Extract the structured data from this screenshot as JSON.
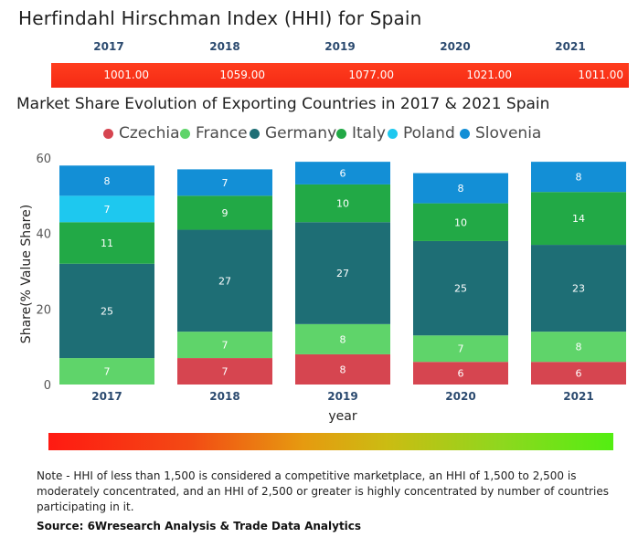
{
  "hhi": {
    "title": "Herfindahl Hirschman Index (HHI) for Spain",
    "years": [
      "2017",
      "2018",
      "2019",
      "2020",
      "2021"
    ],
    "values": [
      "1001.00",
      "1059.00",
      "1077.00",
      "1021.00",
      "1011.00"
    ],
    "bar_color": "#f52a14"
  },
  "chart_data": {
    "type": "bar",
    "stacked": true,
    "title": "Market Share Evolution of Exporting Countries in 2017 & 2021 Spain",
    "xlabel": "year",
    "ylabel": "Share(% Value Share)",
    "categories": [
      "2017",
      "2018",
      "2019",
      "2020",
      "2021"
    ],
    "ylim": [
      0,
      60
    ],
    "yticks": [
      "0",
      "20",
      "40",
      "60"
    ],
    "grid": false,
    "legend_position": "top",
    "series": [
      {
        "name": "Czechia",
        "color": "#d64550",
        "values": [
          0,
          7,
          8,
          6,
          6
        ],
        "labels": [
          "",
          "7",
          "8",
          "6",
          "6"
        ]
      },
      {
        "name": "France",
        "color": "#5fd46a",
        "values": [
          7,
          7,
          8,
          7,
          8
        ],
        "labels": [
          "7",
          "7",
          "8",
          "7",
          "8"
        ]
      },
      {
        "name": "Germany",
        "color": "#1e6e75",
        "values": [
          25,
          27,
          27,
          25,
          23
        ],
        "labels": [
          "25",
          "27",
          "27",
          "25",
          "23"
        ]
      },
      {
        "name": "Italy",
        "color": "#22a946",
        "values": [
          11,
          9,
          10,
          10,
          14
        ],
        "labels": [
          "11",
          "9",
          "10",
          "10",
          "14"
        ]
      },
      {
        "name": "Poland",
        "color": "#1ec8ef",
        "values": [
          7,
          0,
          0,
          0,
          0
        ],
        "labels": [
          "7",
          "",
          "",
          "",
          ""
        ]
      },
      {
        "name": "Slovenia",
        "color": "#138fd6",
        "values": [
          8,
          7,
          6,
          8,
          8
        ],
        "labels": [
          "8",
          "7",
          "6",
          "8",
          "8"
        ]
      }
    ]
  },
  "scale": {
    "low_color": "#ff1a12",
    "high_color": "#53ee12"
  },
  "footer": {
    "note": "Note - HHI of less than 1,500 is considered a competitive marketplace, an HHI of 1,500 to 2,500 is moderately concentrated, and an HHI of 2,500 or greater is highly concentrated by number of countries participating in it.",
    "source": "Source: 6Wresearch Analysis & Trade Data Analytics"
  }
}
